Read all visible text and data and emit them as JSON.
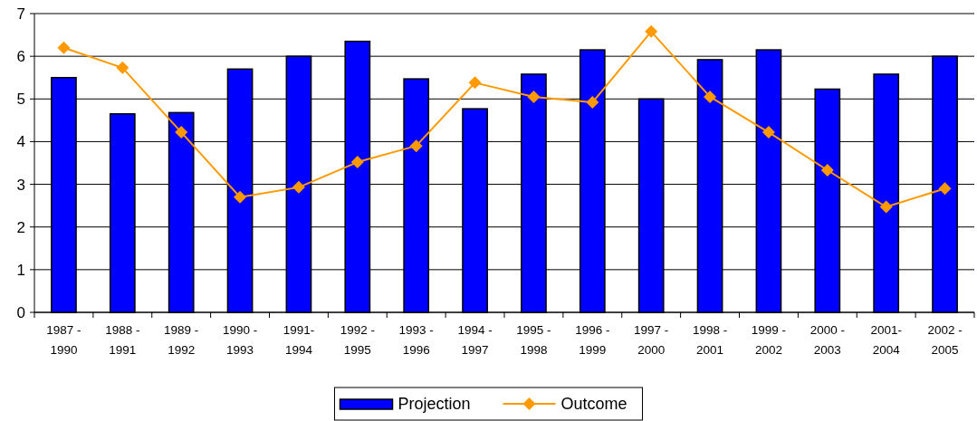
{
  "chart_data": {
    "type": "bar",
    "categories": [
      "1987 - 1990",
      "1988 - 1991",
      "1989 - 1992",
      "1990 - 1993",
      "1991- 1994",
      "1992 - 1995",
      "1993 - 1996",
      "1994 - 1997",
      "1995 - 1998",
      "1996 - 1999",
      "1997 - 2000",
      "1998 - 2001",
      "1999 - 2002",
      "2000 - 2003",
      "2001- 2004",
      "2002 - 2005"
    ],
    "series": [
      {
        "name": "Projection",
        "color": "#0000ff",
        "values": [
          5.5,
          4.65,
          4.68,
          5.7,
          6.0,
          6.35,
          5.47,
          4.77,
          5.58,
          6.15,
          5.0,
          5.92,
          6.15,
          5.23,
          5.58,
          6.0
        ]
      },
      {
        "name": "Outcome",
        "type": "line",
        "color": "#ff9900",
        "marker": "diamond",
        "values": [
          6.2,
          5.73,
          4.22,
          2.7,
          2.93,
          3.52,
          3.9,
          5.38,
          5.05,
          4.92,
          6.58,
          5.05,
          4.22,
          3.33,
          2.47,
          2.9
        ]
      }
    ],
    "ylim": [
      0,
      7
    ],
    "yticks": [
      0,
      1,
      2,
      3,
      4,
      5,
      6,
      7
    ],
    "grid": "y",
    "legend": "bottom"
  }
}
